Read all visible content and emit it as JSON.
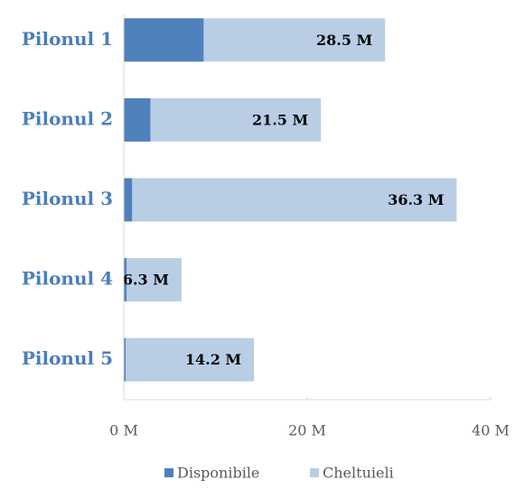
{
  "chart_data": {
    "type": "bar",
    "categories": [
      "Pilonul 1",
      "Pilonul 2",
      "Pilonul 3",
      "Pilonul 4",
      "Pilonul 5"
    ],
    "series": [
      {
        "name": "Disponibile",
        "color": "#4f81bd",
        "values": [
          8.7,
          2.9,
          0.9,
          0.3,
          0.2
        ]
      },
      {
        "name": "Cheltuieli",
        "color": "#b9cde5",
        "values": [
          28.5,
          21.5,
          36.3,
          6.3,
          14.2
        ],
        "value_labels": [
          "28.5 M",
          "21.5 M",
          "36.3 M",
          "6.3 M",
          "14.2 M"
        ]
      }
    ],
    "xlim": [
      0,
      40
    ],
    "xticks": [
      {
        "value": 0,
        "label": "0 M"
      },
      {
        "value": 20,
        "label": "20 M"
      },
      {
        "value": 40,
        "label": "40 M"
      }
    ],
    "legend": "bottom"
  }
}
